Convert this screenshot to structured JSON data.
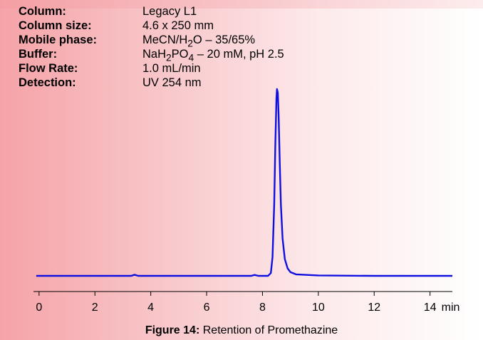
{
  "conditions": [
    {
      "label": "Column:",
      "value": "Legacy L1"
    },
    {
      "label": "Column size:",
      "value": "4.6 x 250 mm"
    },
    {
      "label": "Mobile phase:",
      "value_parts": [
        "MeCN/H",
        "2",
        "O – 35/65%"
      ]
    },
    {
      "label": "Buffer:",
      "value_parts": [
        "NaH",
        "2",
        "PO",
        "4",
        " – 20 mM, pH 2.5"
      ]
    },
    {
      "label": "Flow Rate:",
      "value": "1.0 mL/min"
    },
    {
      "label": "Detection:",
      "value": "UV 254 nm"
    }
  ],
  "caption": {
    "figure": "Figure 14:",
    "text": "Retention of Promethazine"
  },
  "chart_data": {
    "type": "line",
    "title": "",
    "xlabel": "min",
    "ylabel": "",
    "xlim": [
      -0.2,
      14.8
    ],
    "ylim": [
      0,
      100
    ],
    "x_ticks": [
      0,
      2,
      4,
      6,
      8,
      10,
      12,
      14
    ],
    "x_tick_labels": [
      "0",
      "2",
      "4",
      "6",
      "8",
      "10",
      "12",
      "14"
    ],
    "grid": false,
    "legend": "none",
    "line_color": "#1010e0",
    "series": [
      {
        "x": [
          -0.1,
          1.0,
          2.0,
          3.3,
          3.42,
          3.55,
          4.5,
          6.0,
          7.0,
          7.6,
          7.72,
          7.85,
          8.2,
          8.3,
          8.36,
          8.42,
          8.46,
          8.5,
          8.52,
          8.55,
          8.58,
          8.62,
          8.66,
          8.72,
          8.8,
          8.9,
          9.0,
          9.2,
          10.0,
          12.0,
          14.0,
          14.8
        ],
        "y": [
          0,
          0,
          0,
          0,
          0.6,
          0,
          0,
          0,
          0,
          0,
          0.5,
          0,
          0,
          1.5,
          10,
          38,
          70,
          95,
          100,
          98,
          85,
          60,
          38,
          20,
          9,
          4,
          2,
          0.8,
          0.2,
          0,
          0,
          0
        ]
      }
    ]
  }
}
